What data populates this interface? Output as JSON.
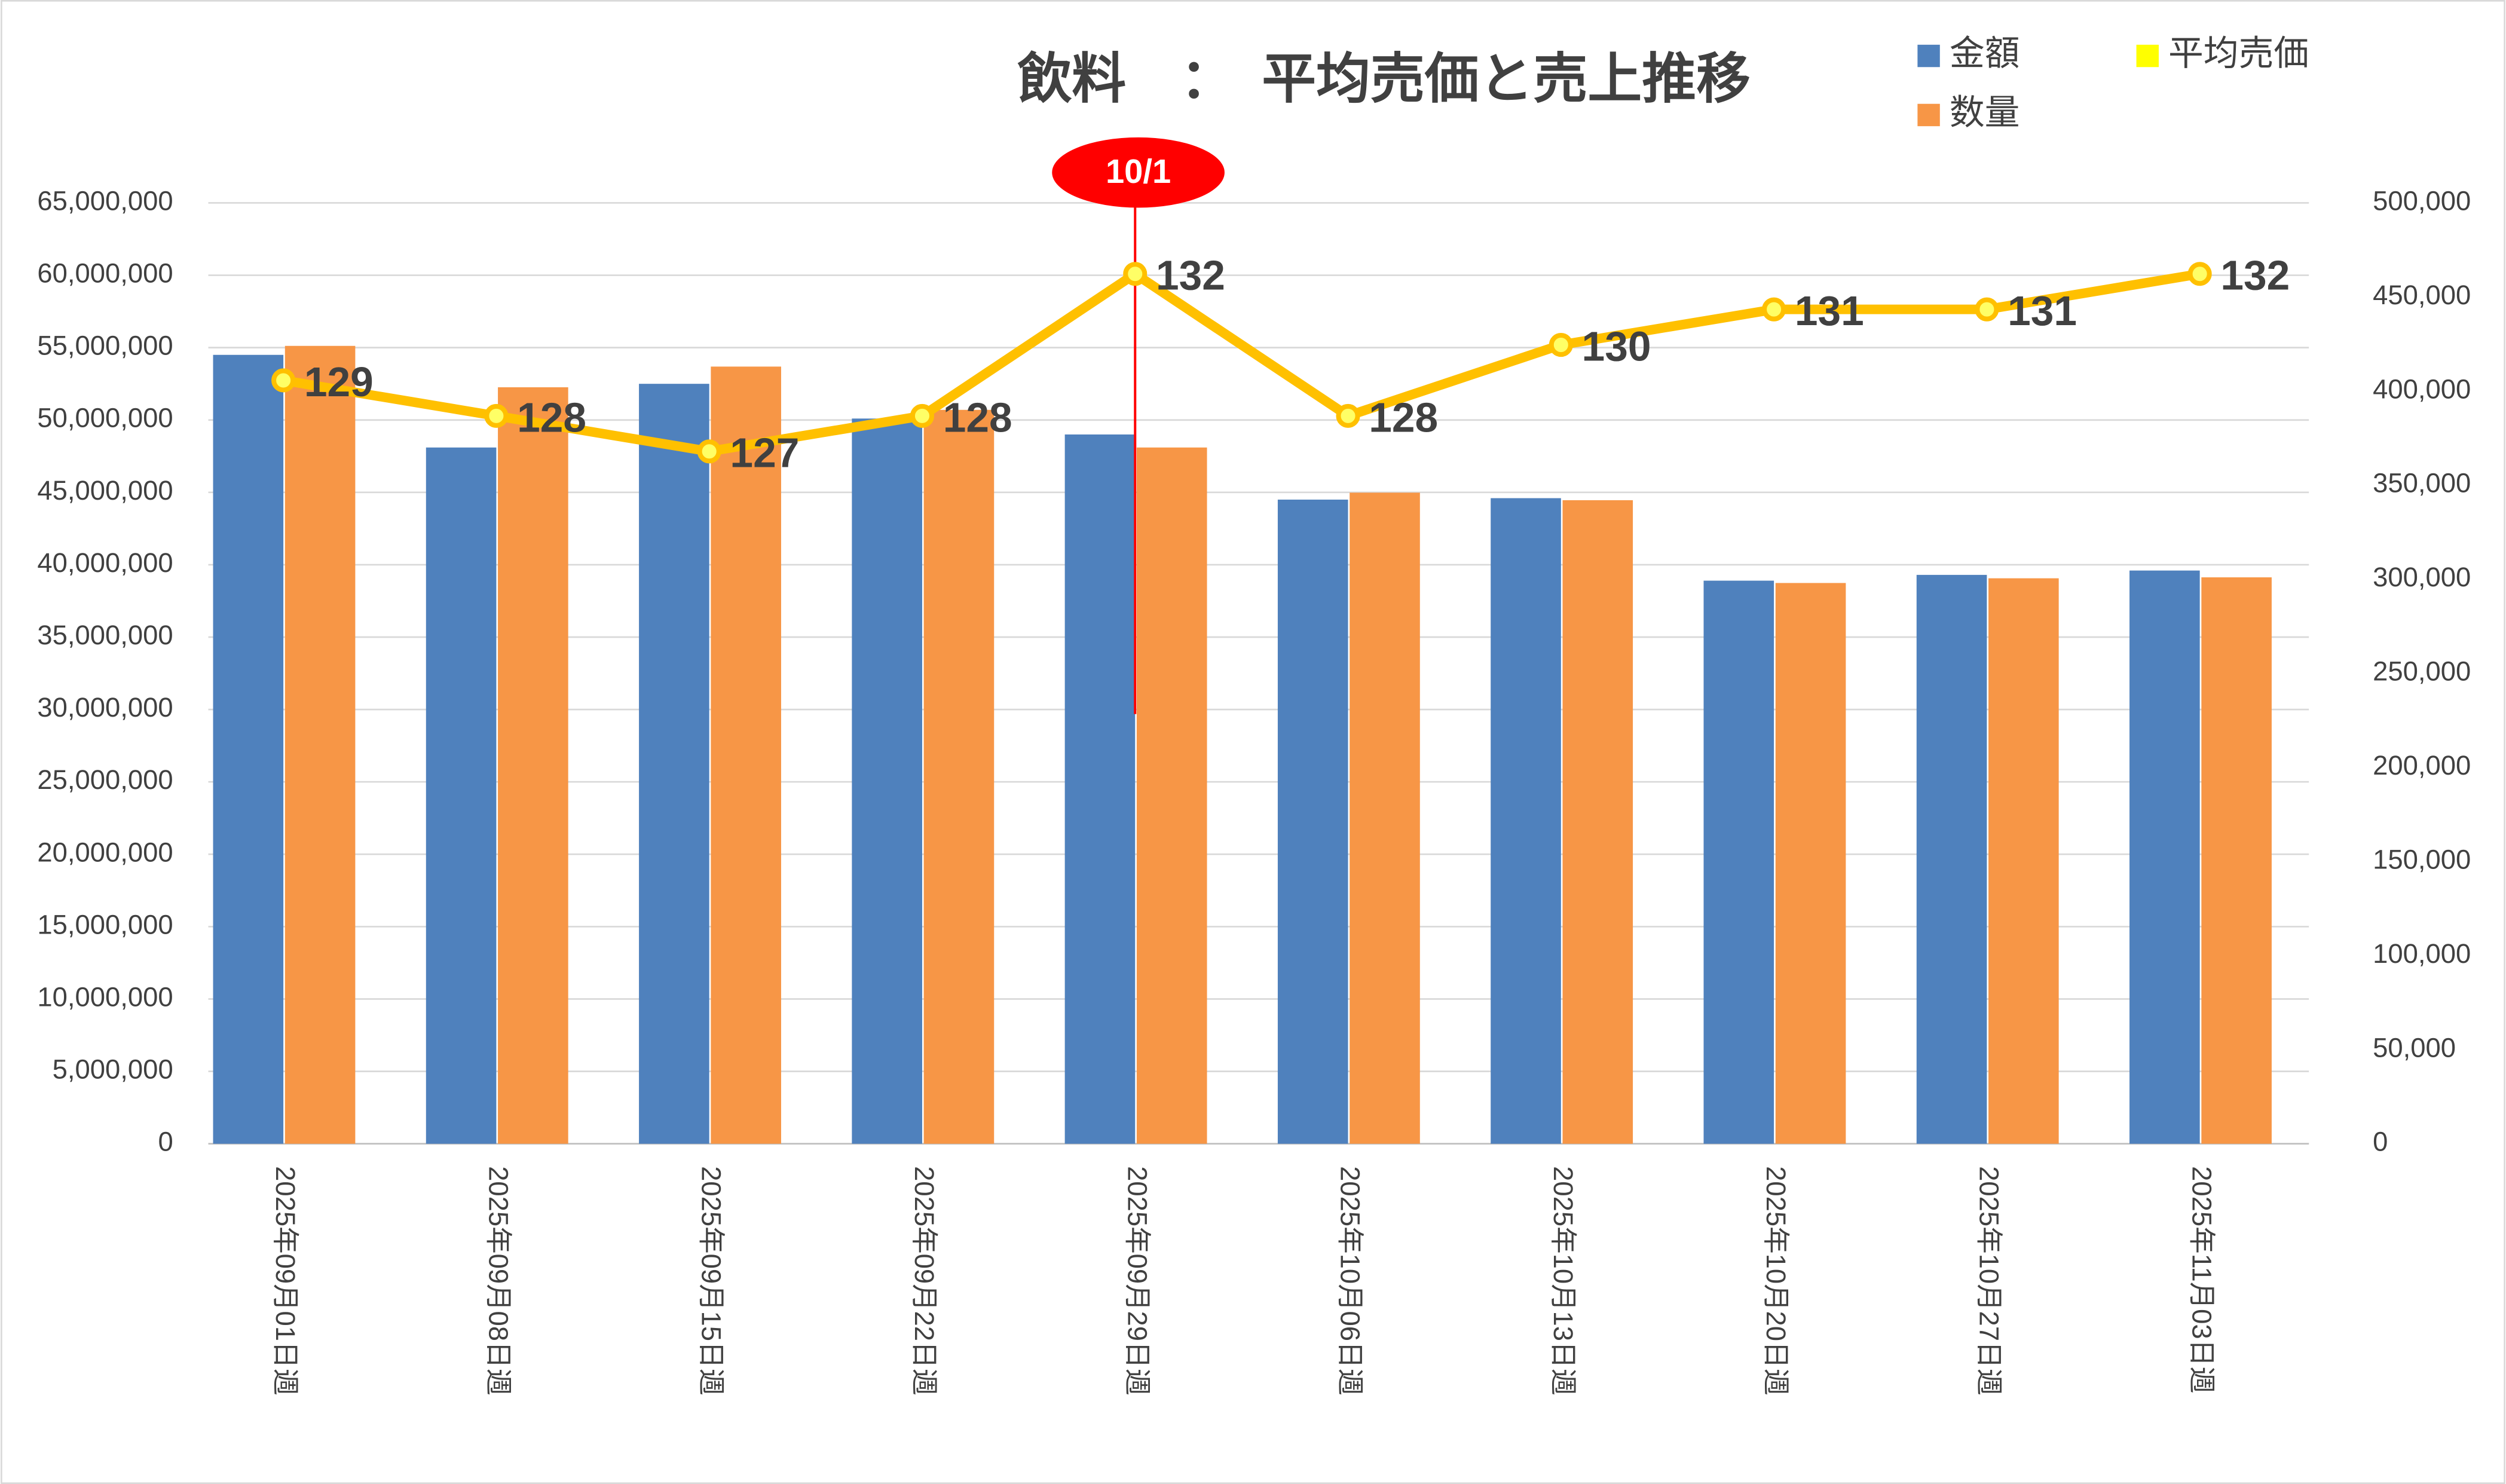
{
  "chart_data": {
    "type": "bar",
    "title": "飲料　：　平均売価と売上推移",
    "categories": [
      "2025年09月01日週",
      "2025年09月08日週",
      "2025年09月15日週",
      "2025年09月22日週",
      "2025年09月29日週",
      "2025年10月06日週",
      "2025年10月13日週",
      "2025年10月20日週",
      "2025年10月27日週",
      "2025年11月03日週"
    ],
    "series": [
      {
        "name": "金額",
        "color": "#4f81bd",
        "type": "bar",
        "values": [
          54500000,
          48100000,
          52500000,
          50100000,
          49000000,
          44500000,
          44600000,
          38900000,
          39300000,
          39600000
        ]
      },
      {
        "name": "数量",
        "color": "#f79646",
        "type": "bar",
        "axis": "y2",
        "values": [
          424000,
          402000,
          413000,
          390000,
          370000,
          346000,
          342000,
          298000,
          300500,
          301000
        ]
      },
      {
        "name": "平均売価",
        "color": "#ffc000",
        "type": "line",
        "axis": "y3",
        "values": [
          129,
          128,
          127,
          128,
          132,
          128,
          130,
          131,
          131,
          132
        ]
      }
    ],
    "ylim": [
      0,
      65000000
    ],
    "yticks": [
      {
        "value": 0,
        "label": "0"
      },
      {
        "value": 5000000,
        "label": "5,000,000"
      },
      {
        "value": 10000000,
        "label": "10,000,000"
      },
      {
        "value": 15000000,
        "label": "15,000,000"
      },
      {
        "value": 20000000,
        "label": "20,000,000"
      },
      {
        "value": 25000000,
        "label": "25,000,000"
      },
      {
        "value": 30000000,
        "label": "30,000,000"
      },
      {
        "value": 35000000,
        "label": "35,000,000"
      },
      {
        "value": 40000000,
        "label": "40,000,000"
      },
      {
        "value": 45000000,
        "label": "45,000,000"
      },
      {
        "value": 50000000,
        "label": "50,000,000"
      },
      {
        "value": 55000000,
        "label": "55,000,000"
      },
      {
        "value": 60000000,
        "label": "60,000,000"
      },
      {
        "value": 65000000,
        "label": "65,000,000"
      }
    ],
    "y2lim": [
      0,
      500000
    ],
    "y2ticks": [
      {
        "value": 0,
        "label": "0"
      },
      {
        "value": 50000,
        "label": "50,000"
      },
      {
        "value": 100000,
        "label": "100,000"
      },
      {
        "value": 150000,
        "label": "150,000"
      },
      {
        "value": 200000,
        "label": "200,000"
      },
      {
        "value": 250000,
        "label": "250,000"
      },
      {
        "value": 300000,
        "label": "300,000"
      },
      {
        "value": 350000,
        "label": "350,000"
      },
      {
        "value": 400000,
        "label": "400,000"
      },
      {
        "value": 450000,
        "label": "450,000"
      },
      {
        "value": 500000,
        "label": "500,000"
      }
    ],
    "y3lim": [
      107.5,
      134
    ],
    "grid": true,
    "legend": "top-right",
    "annotation": {
      "text": "10/1",
      "category": 4,
      "color": "#ff0000"
    }
  }
}
